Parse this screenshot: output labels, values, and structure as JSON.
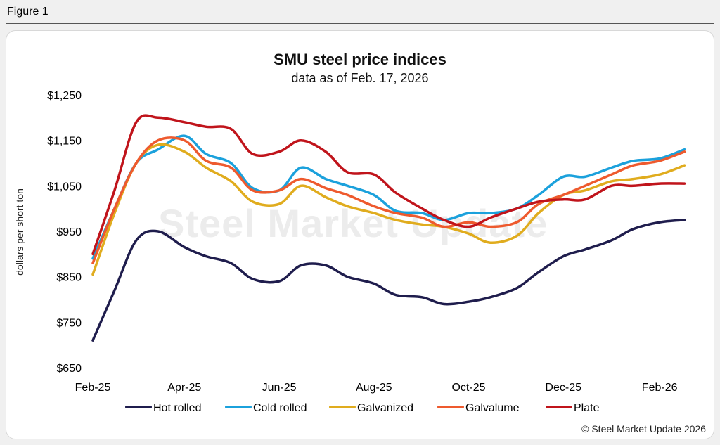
{
  "figure_label": "Figure 1",
  "watermark": "Steel Market Update",
  "copyright": "© Steel Market Update 2026",
  "chart_data": {
    "type": "line",
    "title": "SMU steel price indices",
    "subtitle": "data as of Feb. 17, 2026",
    "ylabel": "dollars per short ton",
    "xlabel": "",
    "ylim": [
      650,
      1250
    ],
    "yticks": [
      650,
      750,
      850,
      950,
      1050,
      1150,
      1250
    ],
    "ytick_labels": [
      "$650",
      "$750",
      "$850",
      "$950",
      "$1,050",
      "$1,150",
      "$1,250"
    ],
    "xlim": [
      "2025-02-01",
      "2026-03-01"
    ],
    "xticks": [
      "2025-02-01",
      "2025-04-01",
      "2025-06-01",
      "2025-08-01",
      "2025-10-01",
      "2025-12-01",
      "2026-02-01"
    ],
    "xtick_labels": [
      "Feb-25",
      "Apr-25",
      "Jun-25",
      "Aug-25",
      "Oct-25",
      "Dec-25",
      "Feb-26"
    ],
    "grid": false,
    "legend_position": "bottom",
    "x": [
      "2025-02-01",
      "2025-02-15",
      "2025-03-01",
      "2025-03-15",
      "2025-04-01",
      "2025-04-15",
      "2025-05-01",
      "2025-05-15",
      "2025-06-01",
      "2025-06-15",
      "2025-07-01",
      "2025-07-15",
      "2025-08-01",
      "2025-08-15",
      "2025-09-01",
      "2025-09-15",
      "2025-10-01",
      "2025-10-15",
      "2025-11-01",
      "2025-11-15",
      "2025-12-01",
      "2025-12-15",
      "2026-01-01",
      "2026-01-15",
      "2026-02-01",
      "2026-02-17"
    ],
    "series": [
      {
        "name": "Hot rolled",
        "color": "#1f1d4d",
        "values": [
          710,
          820,
          930,
          950,
          915,
          895,
          880,
          845,
          840,
          875,
          875,
          850,
          835,
          810,
          805,
          790,
          795,
          805,
          825,
          860,
          895,
          910,
          930,
          955,
          970,
          975
        ]
      },
      {
        "name": "Cold rolled",
        "color": "#1ba1dc",
        "values": [
          890,
          1000,
          1100,
          1130,
          1160,
          1120,
          1100,
          1045,
          1040,
          1090,
          1065,
          1050,
          1030,
          995,
          990,
          975,
          990,
          990,
          1000,
          1030,
          1070,
          1070,
          1090,
          1105,
          1110,
          1130
        ]
      },
      {
        "name": "Galvanized",
        "color": "#e0ac1e",
        "values": [
          855,
          990,
          1100,
          1140,
          1125,
          1090,
          1060,
          1015,
          1010,
          1050,
          1025,
          1005,
          990,
          975,
          965,
          960,
          945,
          925,
          940,
          990,
          1030,
          1040,
          1060,
          1065,
          1075,
          1095
        ]
      },
      {
        "name": "Galvalume",
        "color": "#ee5a2e",
        "values": [
          880,
          1000,
          1100,
          1150,
          1150,
          1105,
          1090,
          1040,
          1040,
          1065,
          1045,
          1030,
          1005,
          990,
          980,
          960,
          970,
          960,
          970,
          1010,
          1030,
          1050,
          1075,
          1095,
          1105,
          1125
        ]
      },
      {
        "name": "Plate",
        "color": "#c0141b",
        "values": [
          900,
          1040,
          1190,
          1200,
          1190,
          1180,
          1175,
          1120,
          1125,
          1150,
          1125,
          1080,
          1075,
          1035,
          1000,
          975,
          960,
          980,
          1000,
          1015,
          1020,
          1020,
          1050,
          1050,
          1055,
          1055
        ]
      }
    ]
  }
}
